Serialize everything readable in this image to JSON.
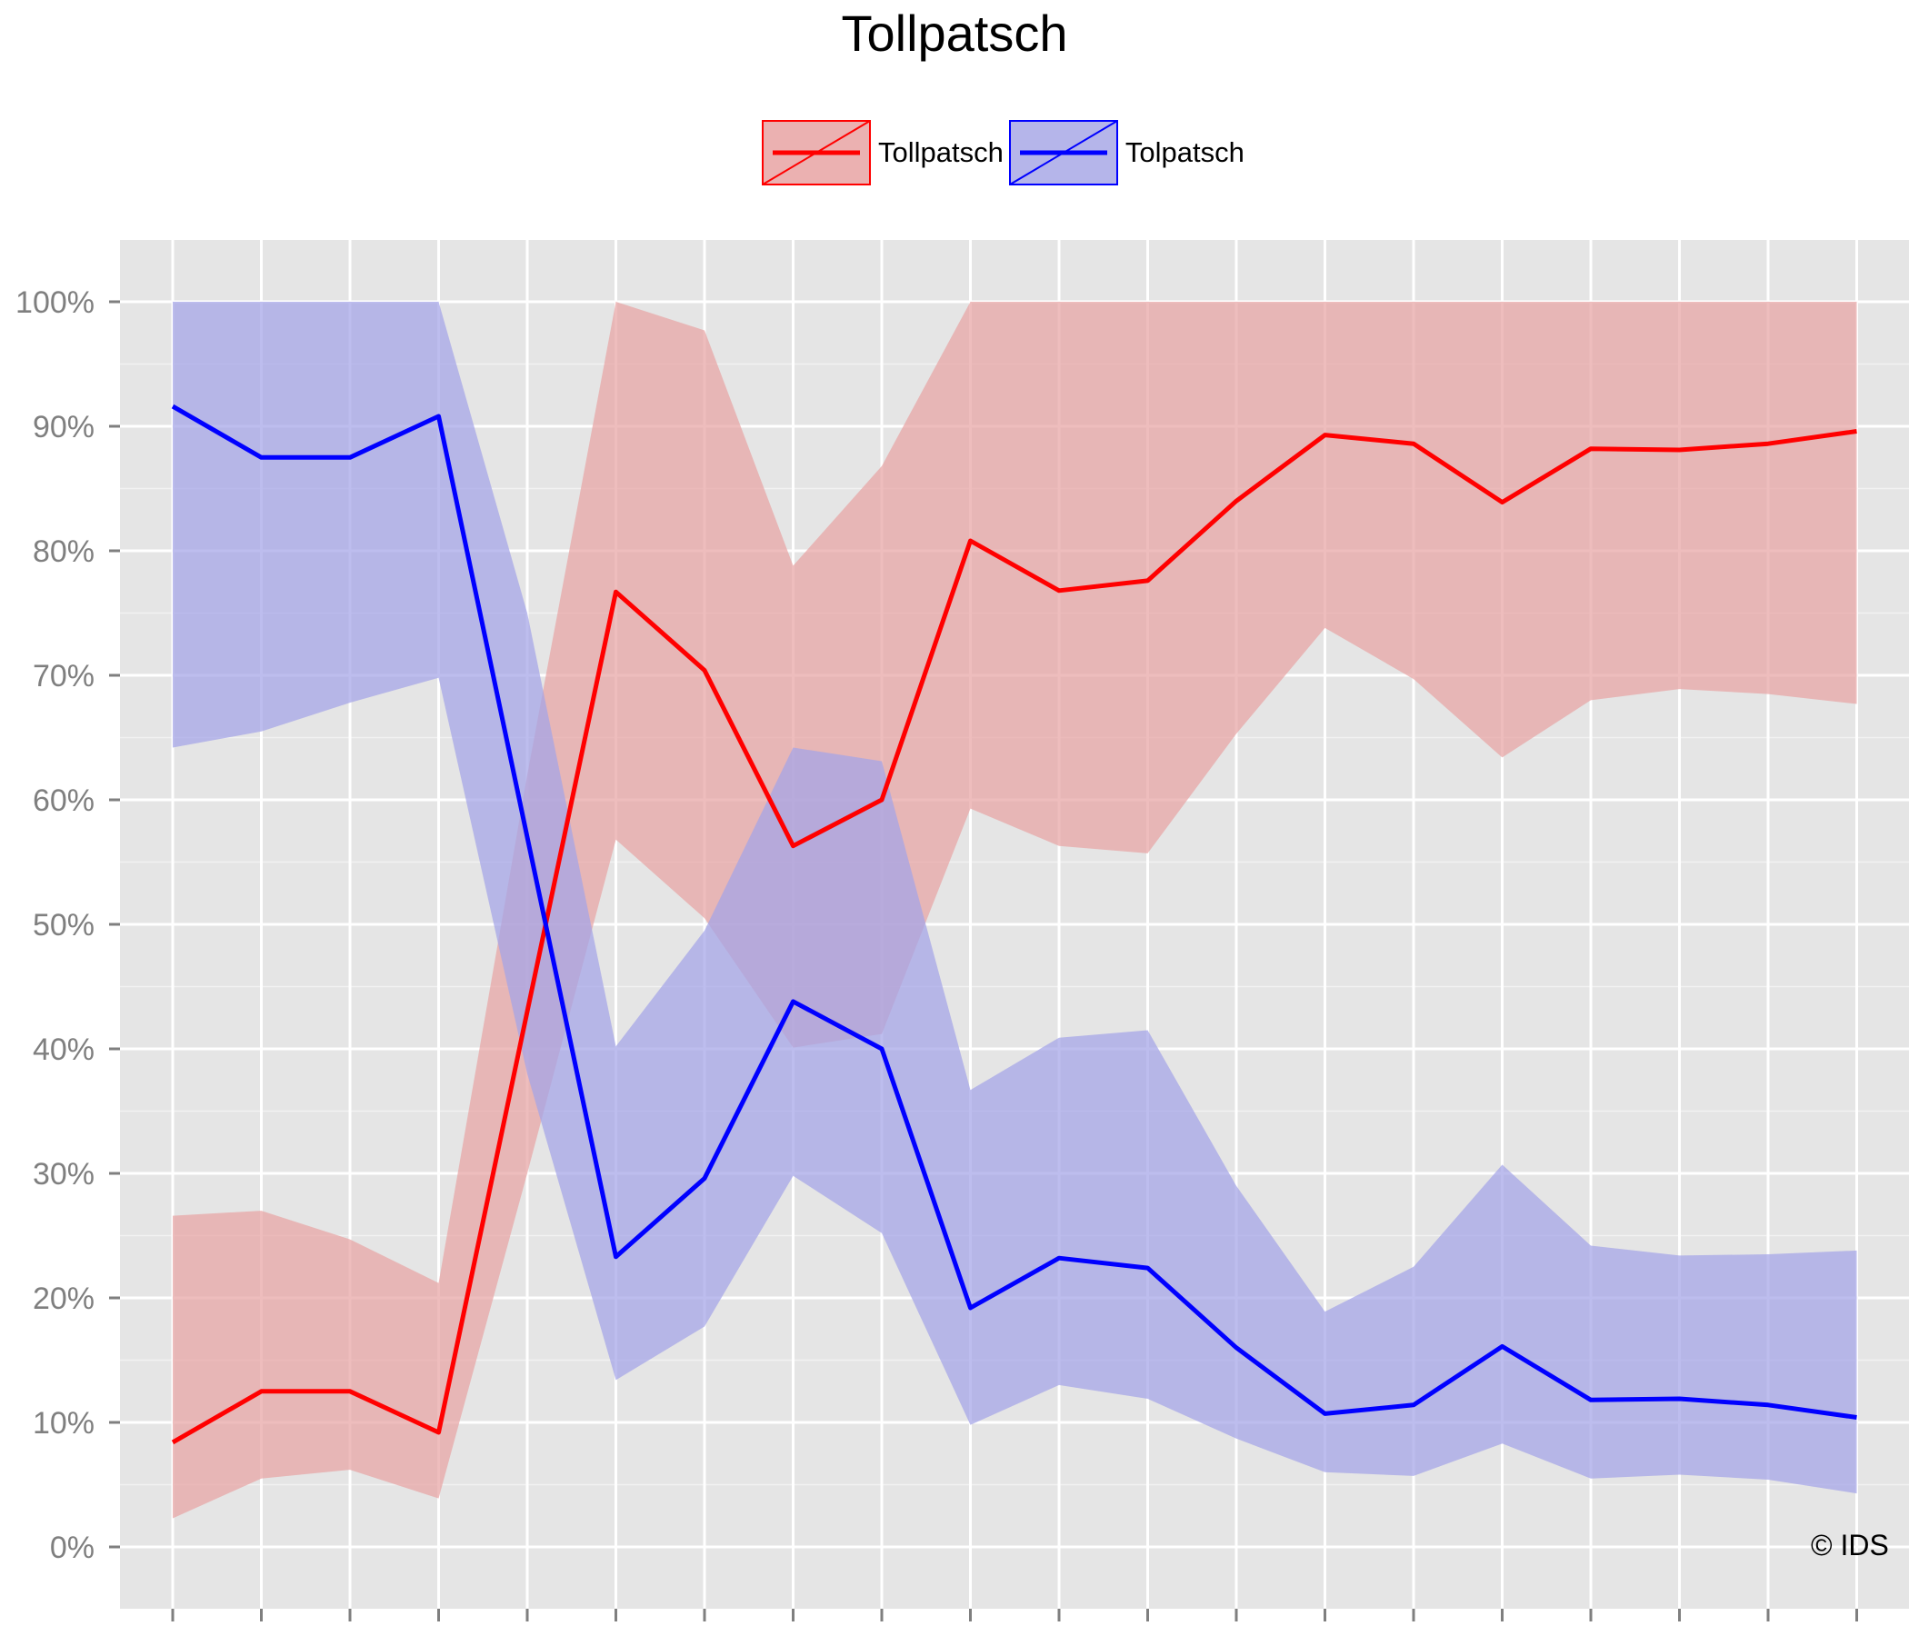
{
  "chart_data": {
    "type": "line",
    "title": "Tollpatsch",
    "xlabel": "",
    "ylabel": "",
    "x": [
      1,
      2,
      3,
      4,
      5,
      6,
      7,
      8,
      9,
      10,
      11,
      12,
      13,
      14,
      15,
      16,
      17,
      18,
      19,
      20
    ],
    "ylim": [
      -5,
      105
    ],
    "yticks": [
      0,
      10,
      20,
      30,
      40,
      50,
      60,
      70,
      80,
      90,
      100
    ],
    "yticklabels": [
      "0%",
      "10%",
      "20%",
      "30%",
      "40%",
      "50%",
      "60%",
      "70%",
      "80%",
      "90%",
      "100%"
    ],
    "legend_position": "top",
    "series": [
      {
        "name": "Tollpatsch",
        "color": "#ff0000",
        "band_color": "#e8a4a4",
        "values": [
          8.4,
          12.5,
          12.5,
          9.2,
          43,
          76.7,
          70.4,
          56.3,
          60,
          80.8,
          76.8,
          77.6,
          84,
          89.3,
          88.6,
          83.9,
          88.2,
          88.1,
          88.6,
          89.6
        ],
        "upper": [
          26.6,
          27.0,
          24.7,
          21.2,
          62,
          100,
          97.7,
          78.8,
          86.8,
          100,
          100,
          100,
          100,
          100,
          100,
          100,
          100,
          100,
          100,
          100
        ],
        "lower": [
          2.3,
          5.5,
          6.2,
          3.9,
          30,
          56.8,
          50.5,
          40.1,
          41.2,
          59.3,
          56.3,
          55.7,
          65.3,
          73.8,
          69.7,
          63.4,
          68.0,
          68.9,
          68.5,
          67.7
        ]
      },
      {
        "name": "Tolpatsch",
        "color": "#0000ff",
        "band_color": "#a4a4e8",
        "values": [
          91.6,
          87.5,
          87.5,
          90.8,
          57,
          23.3,
          29.6,
          43.8,
          40,
          19.2,
          23.2,
          22.4,
          16,
          10.7,
          11.4,
          16.1,
          11.8,
          11.9,
          11.4,
          10.4
        ],
        "upper": [
          100,
          100,
          100,
          100,
          75,
          40.2,
          49.5,
          64.2,
          63.1,
          36.7,
          40.9,
          41.5,
          29,
          18.9,
          22.5,
          30.7,
          24.2,
          23.4,
          23.5,
          23.8
        ],
        "lower": [
          64.2,
          65.5,
          67.8,
          69.8,
          38,
          13.4,
          17.7,
          29.8,
          25.2,
          9.8,
          13.0,
          11.9,
          8.7,
          6.0,
          5.7,
          8.3,
          5.5,
          5.8,
          5.4,
          4.3
        ]
      }
    ],
    "annotations": [
      "© IDS"
    ]
  }
}
